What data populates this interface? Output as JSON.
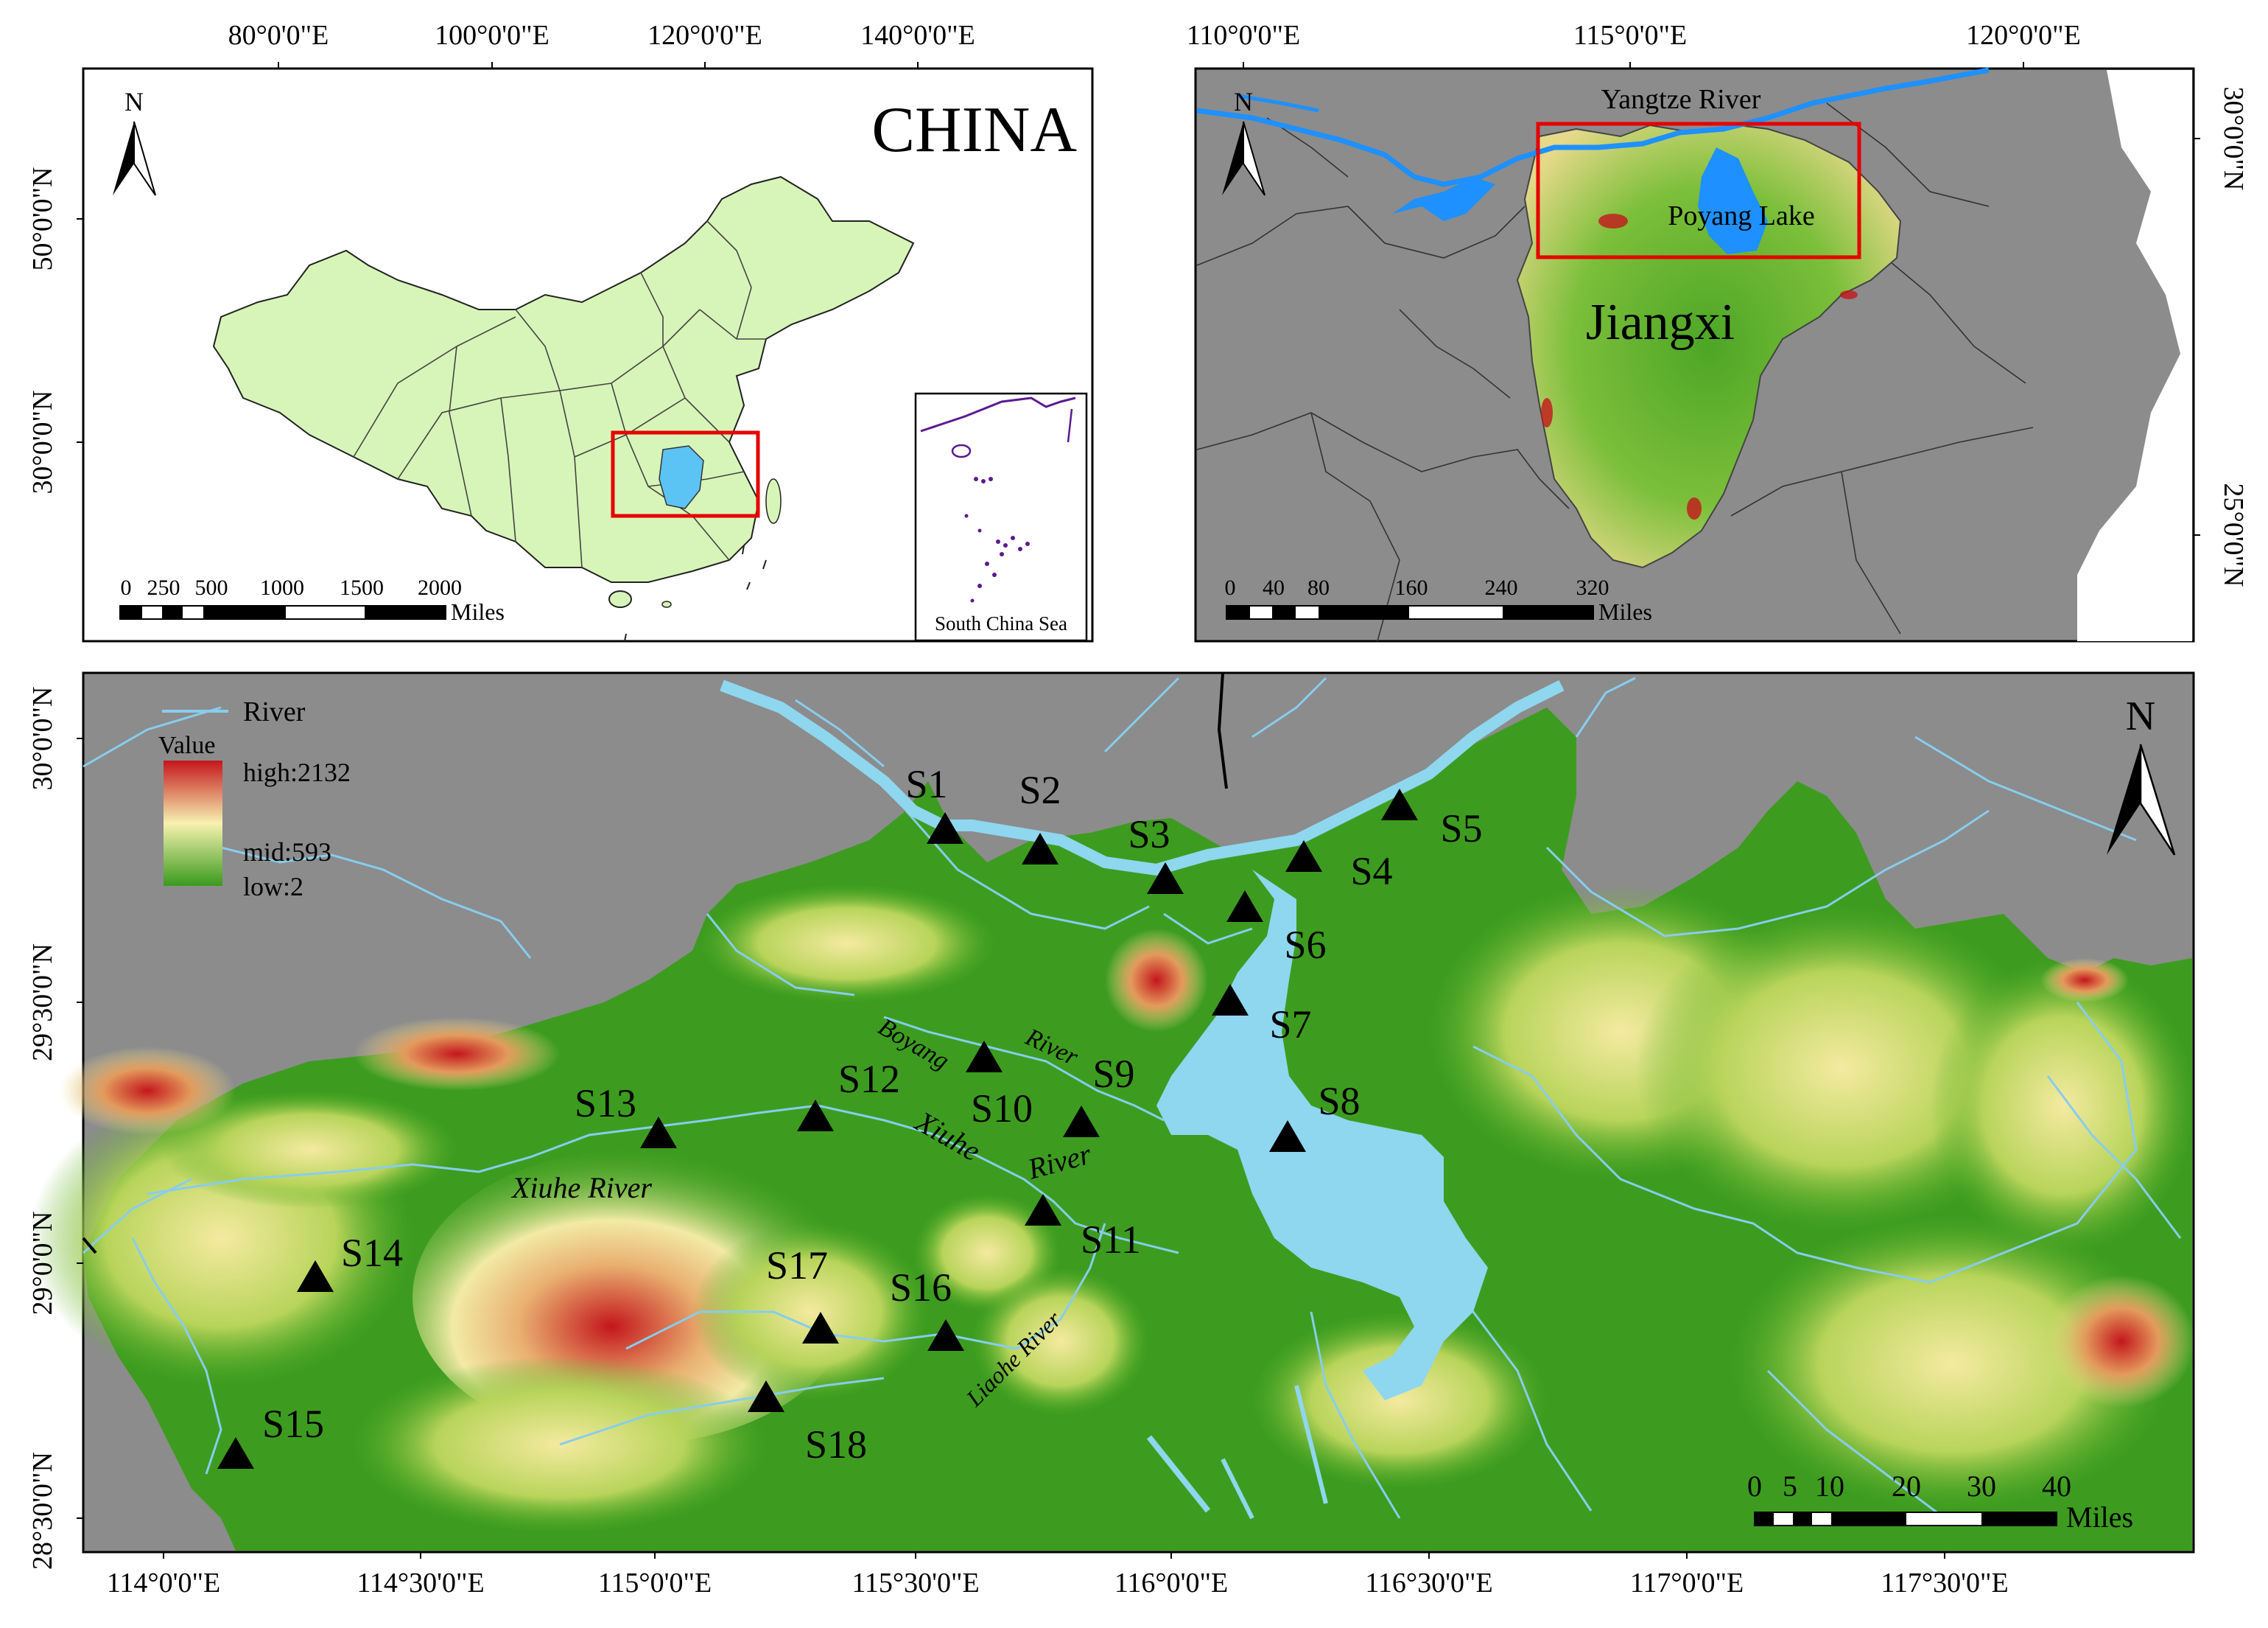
{
  "colors": {
    "china_fill": "#d7f5b8",
    "land_gray": "#8c8c8c",
    "water": "#1e90ff",
    "lake_light": "#8fd6ef",
    "river_light": "#87cdee",
    "frame_red": "#e60000",
    "scs_outline": "#5b1a8f",
    "terrain_low": "#3a9a1e",
    "terrain_mid": "#f7f2b0",
    "terrain_high": "#c4161c"
  },
  "panel_a": {
    "title": "CHINA",
    "north": "N",
    "top_lon": [
      "80°0'0\"E",
      "100°0'0\"E",
      "120°0'0\"E",
      "140°0'0\"E"
    ],
    "left_lat": [
      "50°0'0\"N",
      "30°0'0\"N"
    ],
    "scale_nums": [
      "0",
      "250",
      "500",
      "1000",
      "1500",
      "2000"
    ],
    "scale_unit": "Miles",
    "inset_label": "South China Sea"
  },
  "panel_b": {
    "north": "N",
    "top_lon": [
      "110°0'0\"E",
      "115°0'0\"E",
      "120°0'0\"E"
    ],
    "right_lat": [
      "30°0'0\"N",
      "25°0'0\"N"
    ],
    "labels": {
      "yangtze": "Yangtze River",
      "poyang": "Poyang Lake",
      "province": "Jiangxi"
    },
    "scale_nums": [
      "0",
      "40",
      "80",
      "160",
      "240",
      "320"
    ],
    "scale_unit": "Miles"
  },
  "panel_c": {
    "north": "N",
    "legend": {
      "river": "River",
      "value": "Value",
      "high": "high:2132",
      "mid": "mid:593",
      "low": "low:2"
    },
    "left_lat": [
      "30°0'0\"N",
      "29°30'0\"N",
      "29°0'0\"N",
      "28°30'0\"N"
    ],
    "bottom_lon": [
      "114°0'0\"E",
      "114°30'0\"E",
      "115°0'0\"E",
      "115°30'0\"E",
      "116°0'0\"E",
      "116°30'0\"E",
      "117°0'0\"E",
      "117°30'0\"E"
    ],
    "rivers": {
      "boyang_1": "Boyang",
      "boyang_2": "River",
      "xiuhe_main": "Xiuhe River",
      "xiuhe_1": "Xiuhe",
      "xiuhe_2": "River",
      "liaohe": "Liaohe River"
    },
    "sites": [
      "S1",
      "S2",
      "S3",
      "S4",
      "S5",
      "S6",
      "S7",
      "S8",
      "S9",
      "S10",
      "S11",
      "S12",
      "S13",
      "S14",
      "S15",
      "S16",
      "S17",
      "S18"
    ],
    "scale_nums": [
      "0",
      "5",
      "10",
      "20",
      "30",
      "40"
    ],
    "scale_unit": "Miles"
  }
}
